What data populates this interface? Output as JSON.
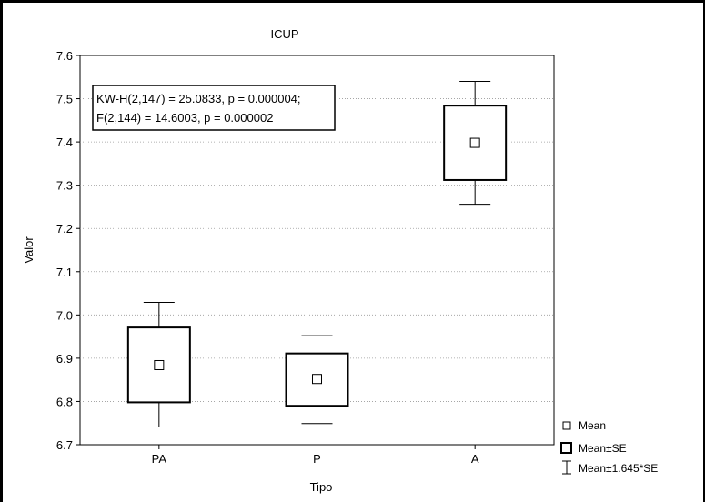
{
  "chart_data": {
    "type": "boxplot",
    "title": "ICUP",
    "xlabel": "Tipo",
    "ylabel": "Valor",
    "categories": [
      "PA",
      "P",
      "A"
    ],
    "ylim": [
      6.7,
      7.6
    ],
    "yticks": [
      "6.7",
      "6.8",
      "6.9",
      "7.0",
      "7.1",
      "7.2",
      "7.3",
      "7.4",
      "7.5",
      "7.6"
    ],
    "grid": true,
    "series": [
      {
        "category": "PA",
        "mean": 6.884,
        "se_low": 6.798,
        "se_high": 6.971,
        "ci_low": 6.741,
        "ci_high": 7.029
      },
      {
        "category": "P",
        "mean": 6.852,
        "se_low": 6.79,
        "se_high": 6.911,
        "ci_low": 6.749,
        "ci_high": 6.952
      },
      {
        "category": "A",
        "mean": 7.398,
        "se_low": 7.312,
        "se_high": 7.484,
        "ci_low": 7.256,
        "ci_high": 7.54
      }
    ],
    "annotation": [
      "KW-H(2,147) = 25.0833, p = 0.000004;",
      "F(2,144) = 14.6003, p = 0.000002"
    ],
    "legend": [
      "Mean",
      "Mean±SE",
      "Mean±1.645*SE"
    ],
    "legend_position": "bottom-right"
  }
}
